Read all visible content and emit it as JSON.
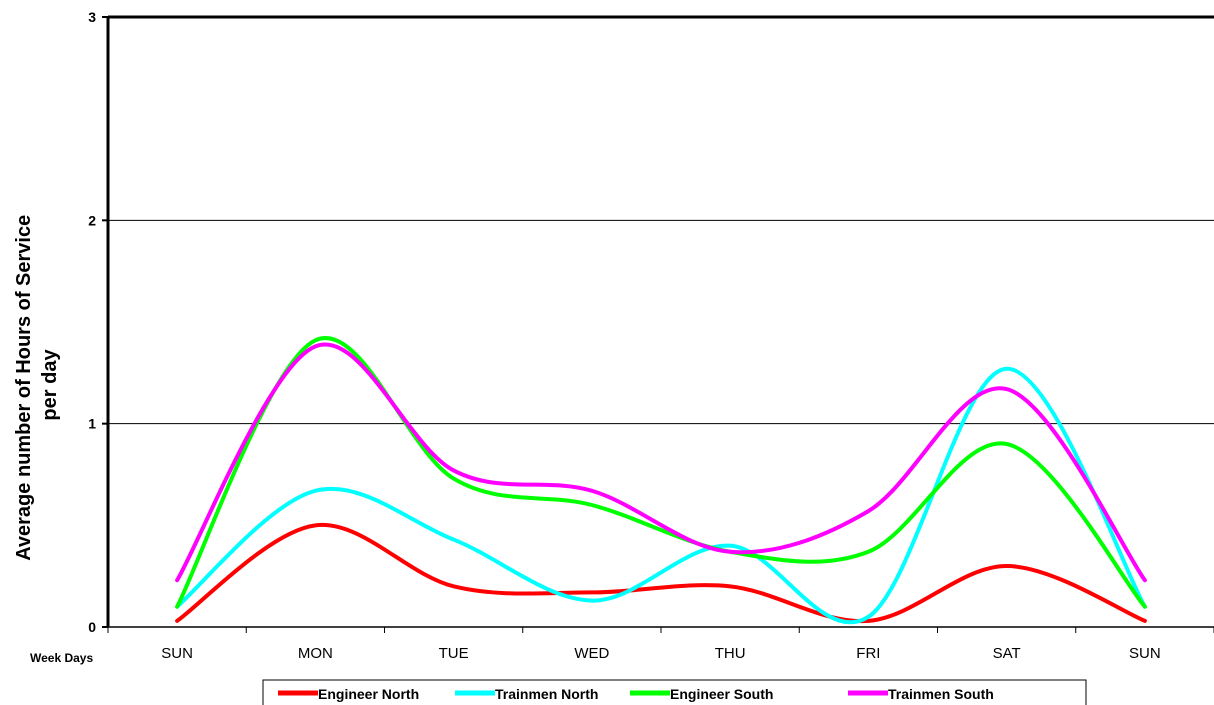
{
  "chart_data": {
    "type": "line",
    "title": "",
    "xlabel": "Week Days",
    "ylabel_lines": [
      "Average number of Hours of Service",
      "per day"
    ],
    "categories": [
      "SUN",
      "MON",
      "TUE",
      "WED",
      "THU",
      "FRI",
      "SAT",
      "SUN"
    ],
    "ylim": [
      0,
      3
    ],
    "yticks": [
      "0",
      "1",
      "2",
      "3"
    ],
    "grid": true,
    "smooth": true,
    "legend_position": "bottom",
    "series": [
      {
        "name": "Engineer North",
        "color": "#ff0000",
        "values": [
          0.03,
          0.5,
          0.2,
          0.17,
          0.2,
          0.03,
          0.3,
          0.03
        ]
      },
      {
        "name": "Trainmen North",
        "color": "#00ffff",
        "values": [
          0.1,
          0.67,
          0.43,
          0.13,
          0.4,
          0.05,
          1.27,
          0.1
        ]
      },
      {
        "name": "Engineer South",
        "color": "#00ff00",
        "values": [
          0.1,
          1.41,
          0.73,
          0.6,
          0.37,
          0.37,
          0.9,
          0.1
        ]
      },
      {
        "name": "Trainmen South",
        "color": "#ff00ff",
        "values": [
          0.23,
          1.38,
          0.77,
          0.67,
          0.37,
          0.57,
          1.17,
          0.23
        ]
      }
    ]
  }
}
